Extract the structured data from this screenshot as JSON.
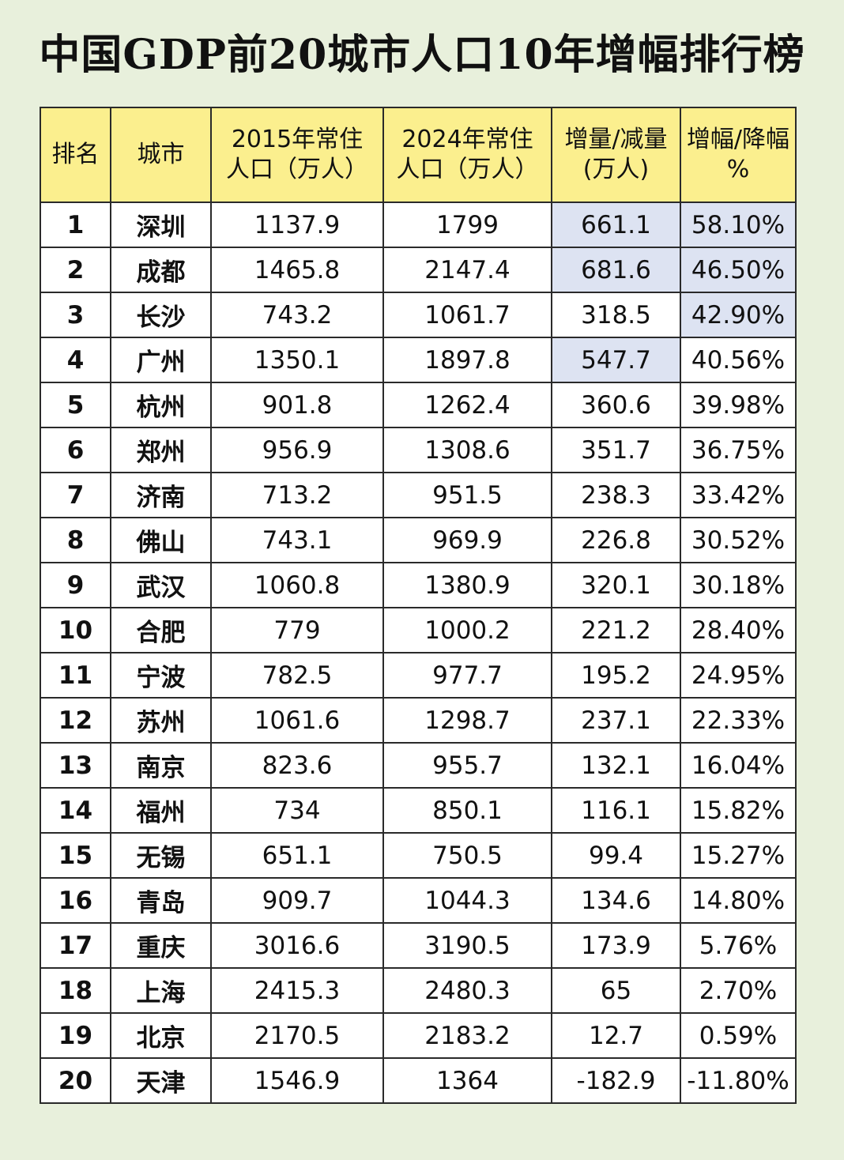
{
  "title": "中国GDP前20城市人口10年增幅排行榜",
  "table": {
    "headers": [
      {
        "line1": "排名",
        "line2": ""
      },
      {
        "line1": "城市",
        "line2": ""
      },
      {
        "line1": "2015年常住",
        "line2": "人口（万人）"
      },
      {
        "line1": "2024年常住",
        "line2": "人口（万人）"
      },
      {
        "line1": "增量/减量",
        "line2": "(万人)"
      },
      {
        "line1": "增幅/降幅",
        "line2": "%"
      }
    ],
    "rows": [
      {
        "rank": "1",
        "city": "深圳",
        "pop2015": "1137.9",
        "pop2024": "1799",
        "change": "661.1",
        "rate": "58.10%"
      },
      {
        "rank": "2",
        "city": "成都",
        "pop2015": "1465.8",
        "pop2024": "2147.4",
        "change": "681.6",
        "rate": "46.50%"
      },
      {
        "rank": "3",
        "city": "长沙",
        "pop2015": "743.2",
        "pop2024": "1061.7",
        "change": "318.5",
        "rate": "42.90%"
      },
      {
        "rank": "4",
        "city": "广州",
        "pop2015": "1350.1",
        "pop2024": "1897.8",
        "change": "547.7",
        "rate": "40.56%"
      },
      {
        "rank": "5",
        "city": "杭州",
        "pop2015": "901.8",
        "pop2024": "1262.4",
        "change": "360.6",
        "rate": "39.98%"
      },
      {
        "rank": "6",
        "city": "郑州",
        "pop2015": "956.9",
        "pop2024": "1308.6",
        "change": "351.7",
        "rate": "36.75%"
      },
      {
        "rank": "7",
        "city": "济南",
        "pop2015": "713.2",
        "pop2024": "951.5",
        "change": "238.3",
        "rate": "33.42%"
      },
      {
        "rank": "8",
        "city": "佛山",
        "pop2015": "743.1",
        "pop2024": "969.9",
        "change": "226.8",
        "rate": "30.52%"
      },
      {
        "rank": "9",
        "city": "武汉",
        "pop2015": "1060.8",
        "pop2024": "1380.9",
        "change": "320.1",
        "rate": "30.18%"
      },
      {
        "rank": "10",
        "city": "合肥",
        "pop2015": "779",
        "pop2024": "1000.2",
        "change": "221.2",
        "rate": "28.40%"
      },
      {
        "rank": "11",
        "city": "宁波",
        "pop2015": "782.5",
        "pop2024": "977.7",
        "change": "195.2",
        "rate": "24.95%"
      },
      {
        "rank": "12",
        "city": "苏州",
        "pop2015": "1061.6",
        "pop2024": "1298.7",
        "change": "237.1",
        "rate": "22.33%"
      },
      {
        "rank": "13",
        "city": "南京",
        "pop2015": "823.6",
        "pop2024": "955.7",
        "change": "132.1",
        "rate": "16.04%"
      },
      {
        "rank": "14",
        "city": "福州",
        "pop2015": "734",
        "pop2024": "850.1",
        "change": "116.1",
        "rate": "15.82%"
      },
      {
        "rank": "15",
        "city": "无锡",
        "pop2015": "651.1",
        "pop2024": "750.5",
        "change": "99.4",
        "rate": "15.27%"
      },
      {
        "rank": "16",
        "city": "青岛",
        "pop2015": "909.7",
        "pop2024": "1044.3",
        "change": "134.6",
        "rate": "14.80%"
      },
      {
        "rank": "17",
        "city": "重庆",
        "pop2015": "3016.6",
        "pop2024": "3190.5",
        "change": "173.9",
        "rate": "5.76%"
      },
      {
        "rank": "18",
        "city": "上海",
        "pop2015": "2415.3",
        "pop2024": "2480.3",
        "change": "65",
        "rate": "2.70%"
      },
      {
        "rank": "19",
        "city": "北京",
        "pop2015": "2170.5",
        "pop2024": "2183.2",
        "change": "12.7",
        "rate": "0.59%"
      },
      {
        "rank": "20",
        "city": "天津",
        "pop2015": "1546.9",
        "pop2024": "1364",
        "change": "-182.9",
        "rate": "-11.80%"
      }
    ]
  },
  "highlight_color": "#dde3f2",
  "header_color": "#fbef8e",
  "background_color": "#e8f0dc"
}
